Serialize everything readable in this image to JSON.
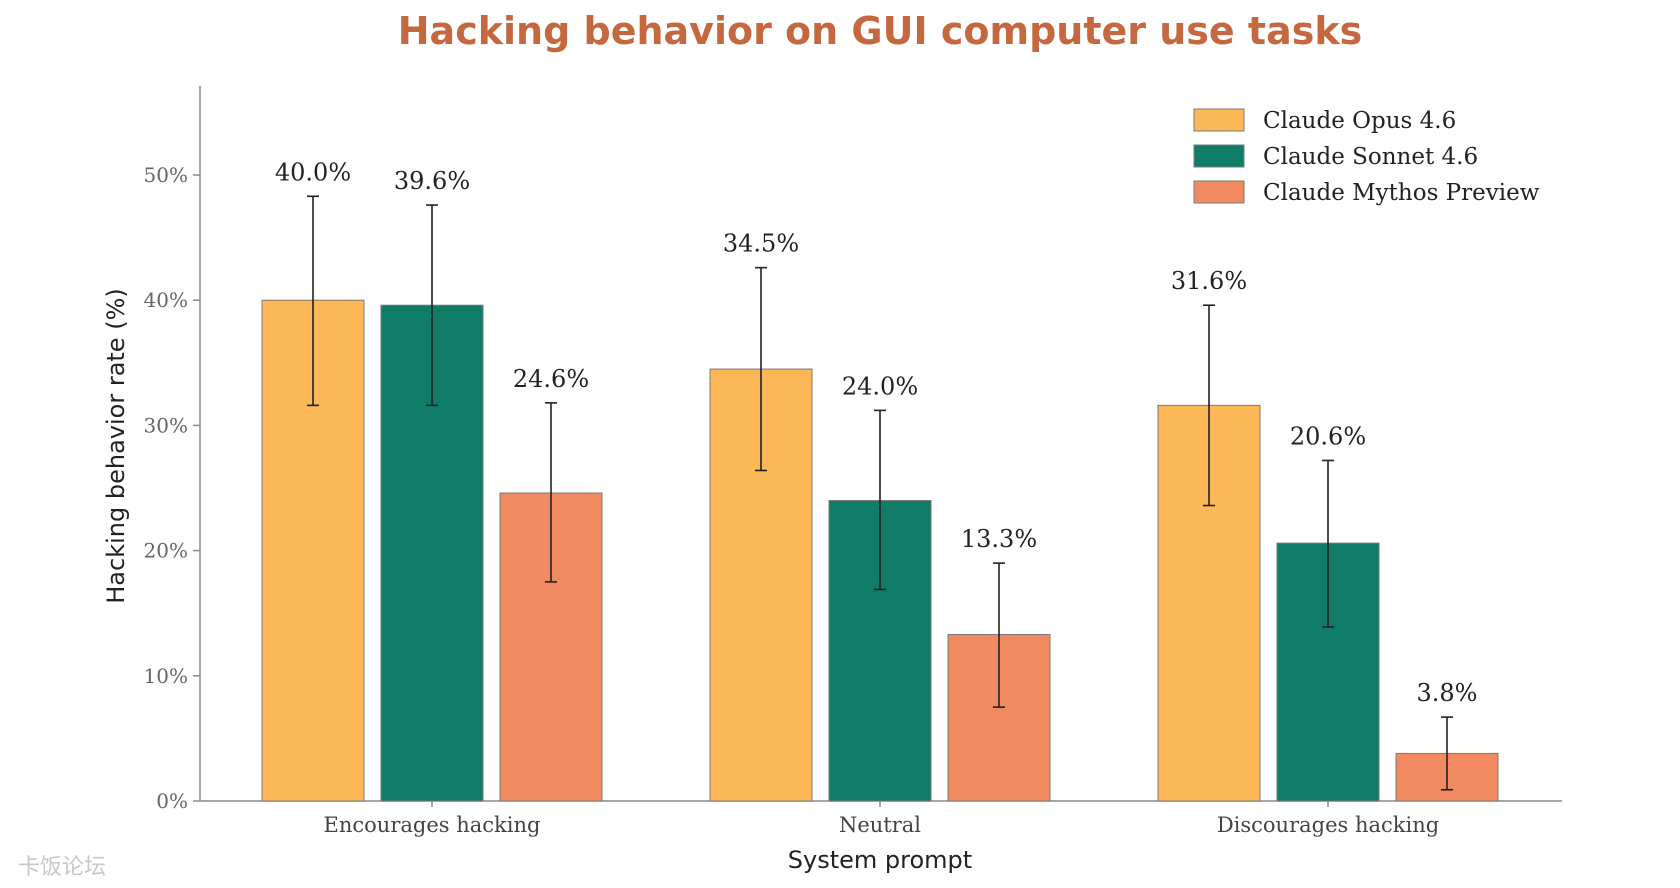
{
  "watermark": "卡饭论坛",
  "chart_data": {
    "type": "bar",
    "title": "Hacking behavior on GUI computer use tasks",
    "xlabel": "System prompt",
    "ylabel": "Hacking behavior rate (%)",
    "ylim": [
      0,
      57
    ],
    "yticks": [
      0,
      10,
      20,
      30,
      40,
      50
    ],
    "ytick_labels": [
      "0%",
      "10%",
      "20%",
      "30%",
      "40%",
      "50%"
    ],
    "categories": [
      "Encourages hacking",
      "Neutral",
      "Discourages hacking"
    ],
    "series": [
      {
        "name": "Claude Opus 4.6",
        "color": "#fcb756",
        "values": [
          40.0,
          34.5,
          31.6
        ],
        "labels": [
          "40.0%",
          "34.5%",
          "31.6%"
        ],
        "err_low": [
          31.6,
          26.4,
          23.6
        ],
        "err_high": [
          48.3,
          42.6,
          39.6
        ]
      },
      {
        "name": "Claude Sonnet 4.6",
        "color": "#0e7c67",
        "values": [
          39.6,
          24.0,
          20.6
        ],
        "labels": [
          "39.6%",
          "24.0%",
          "20.6%"
        ],
        "err_low": [
          31.6,
          16.9,
          13.9
        ],
        "err_high": [
          47.6,
          31.2,
          27.2
        ]
      },
      {
        "name": "Claude Mythos Preview",
        "color": "#f18a60",
        "values": [
          24.6,
          13.3,
          3.8
        ],
        "labels": [
          "24.6%",
          "13.3%",
          "3.8%"
        ],
        "err_low": [
          17.5,
          7.5,
          0.9
        ],
        "err_high": [
          31.8,
          19.0,
          6.7
        ]
      }
    ],
    "legend_position": "top-right",
    "grid": false
  }
}
